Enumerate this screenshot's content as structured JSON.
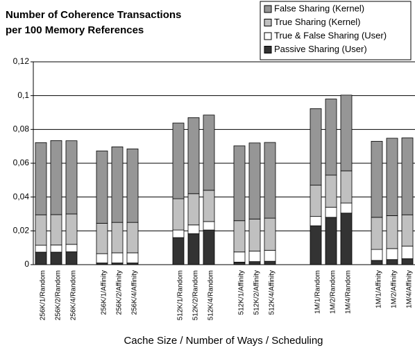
{
  "chart_data": {
    "type": "stacked_bar",
    "title": [
      "Number of Coherence Transactions",
      "per 100 Memory References"
    ],
    "x_label": "Cache Size / Number of Ways / Scheduling",
    "categories": [
      "256K/1/Random",
      "256K/2/Random",
      "256K/4/Random",
      null,
      "256K/1/Affinity",
      "256K/2/Affinity",
      "256K/4/Affinity",
      null,
      null,
      "512K/1/Random",
      "512K/2/Random",
      "512K/4/Random",
      null,
      "512K/1/Affinity",
      "512K/2/Affinity",
      "512K/4/Affinity",
      null,
      null,
      "1M/1/Random",
      "1M/2/Random",
      "1M/4/Random",
      null,
      "1M/1/Affinity",
      "1M/2/Affinity",
      "1M/4/Affinity"
    ],
    "series": [
      {
        "name": "Passive Sharing (User)",
        "color": "#333333",
        "values": [
          0.0074,
          0.0074,
          0.0076,
          null,
          0.001,
          0.001,
          0.001,
          null,
          null,
          0.016,
          0.0183,
          0.0205,
          null,
          0.0015,
          0.0018,
          0.002,
          null,
          null,
          0.023,
          0.028,
          0.0305,
          null,
          0.0025,
          0.003,
          0.0035
        ]
      },
      {
        "name": "True & False Sharing (User)",
        "color": "#ffffff",
        "values": [
          0.0041,
          0.0042,
          0.0044,
          null,
          0.0055,
          0.006,
          0.006,
          null,
          null,
          0.0045,
          0.0052,
          0.005,
          null,
          0.006,
          0.0062,
          0.0065,
          null,
          null,
          0.0055,
          0.006,
          0.006,
          null,
          0.0065,
          0.0065,
          0.0075
        ]
      },
      {
        "name": "True Sharing (Kernel)",
        "color": "#c0c0c0",
        "values": [
          0.018,
          0.018,
          0.018,
          null,
          0.018,
          0.018,
          0.018,
          null,
          null,
          0.0185,
          0.0185,
          0.0185,
          null,
          0.0185,
          0.019,
          0.019,
          null,
          null,
          0.0185,
          0.019,
          0.019,
          null,
          0.019,
          0.0195,
          0.0185
        ]
      },
      {
        "name": "False Sharing (Kernel)",
        "color": "#969696",
        "values": [
          0.0427,
          0.0438,
          0.0433,
          null,
          0.0428,
          0.0447,
          0.0435,
          null,
          null,
          0.0448,
          0.045,
          0.0445,
          null,
          0.0443,
          0.045,
          0.0448,
          null,
          null,
          0.0453,
          0.045,
          0.0448,
          null,
          0.045,
          0.0458,
          0.0455
        ]
      }
    ],
    "ylim": [
      0,
      0.12
    ],
    "yticks": [
      0,
      {
        "value": 0.02,
        "label": "0,02"
      },
      {
        "value": 0.04,
        "label": "0,04"
      },
      {
        "value": 0.06,
        "label": "0,06"
      },
      {
        "value": 0.08,
        "label": "0,08"
      },
      {
        "value": 0.1,
        "label": "0,1"
      },
      {
        "value": 0.12,
        "label": "0,12"
      }
    ],
    "grid": true
  }
}
